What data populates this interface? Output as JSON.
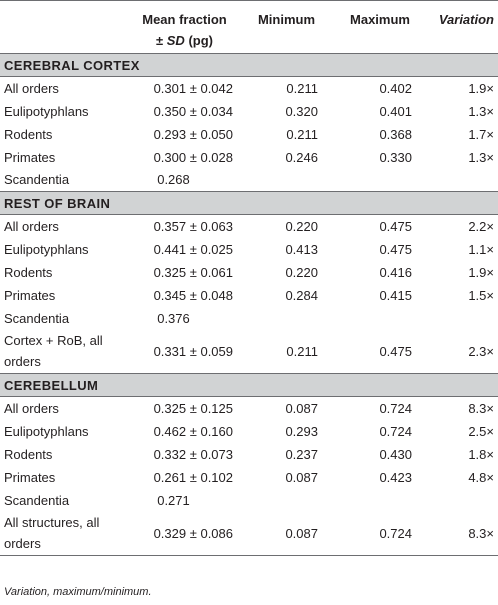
{
  "header": {
    "mean_line1": "Mean fraction",
    "mean_pm": "± ",
    "mean_sd": "SD",
    "mean_unit": " (pg)",
    "minimum": "Minimum",
    "maximum": "Maximum",
    "variation": "Variation"
  },
  "sections": [
    {
      "title": "CEREBRAL CORTEX",
      "rows": [
        {
          "name": "All orders",
          "mean": "0.301 ± 0.042",
          "min": "0.211",
          "max": "0.402",
          "var": "1.9×"
        },
        {
          "name": "Eulipotyphlans",
          "mean": "0.350 ± 0.034",
          "min": "0.320",
          "max": "0.401",
          "var": "1.3×"
        },
        {
          "name": "Rodents",
          "mean": "0.293 ± 0.050",
          "min": "0.211",
          "max": "0.368",
          "var": "1.7×"
        },
        {
          "name": "Primates",
          "mean": "0.300 ± 0.028",
          "min": "0.246",
          "max": "0.330",
          "var": "1.3×"
        },
        {
          "name": "Scandentia",
          "mean": "0.268",
          "min": "",
          "max": "",
          "var": ""
        }
      ]
    },
    {
      "title": "REST OF BRAIN",
      "rows": [
        {
          "name": "All orders",
          "mean": "0.357 ± 0.063",
          "min": "0.220",
          "max": "0.475",
          "var": "2.2×"
        },
        {
          "name": "Eulipotyphlans",
          "mean": "0.441 ± 0.025",
          "min": "0.413",
          "max": "0.475",
          "var": "1.1×"
        },
        {
          "name": "Rodents",
          "mean": "0.325 ± 0.061",
          "min": "0.220",
          "max": "0.416",
          "var": "1.9×"
        },
        {
          "name": "Primates",
          "mean": "0.345 ± 0.048",
          "min": "0.284",
          "max": "0.415",
          "var": "1.5×"
        },
        {
          "name": "Scandentia",
          "mean": "0.376",
          "min": "",
          "max": "",
          "var": ""
        },
        {
          "name": "Cortex + RoB, all orders",
          "mean": "0.331 ± 0.059",
          "min": "0.211",
          "max": "0.475",
          "var": "2.3×"
        }
      ]
    },
    {
      "title": "CEREBELLUM",
      "rows": [
        {
          "name": "All orders",
          "mean": "0.325 ± 0.125",
          "min": "0.087",
          "max": "0.724",
          "var": "8.3×"
        },
        {
          "name": "Eulipotyphlans",
          "mean": "0.462 ± 0.160",
          "min": "0.293",
          "max": "0.724",
          "var": "2.5×"
        },
        {
          "name": "Rodents",
          "mean": "0.332 ± 0.073",
          "min": "0.237",
          "max": "0.430",
          "var": "1.8×"
        },
        {
          "name": "Primates",
          "mean": "0.261 ± 0.102",
          "min": "0.087",
          "max": "0.423",
          "var": "4.8×"
        },
        {
          "name": "Scandentia",
          "mean": "0.271",
          "min": "",
          "max": "",
          "var": ""
        },
        {
          "name": "All structures, all orders",
          "mean": "0.329 ± 0.086",
          "min": "0.087",
          "max": "0.724",
          "var": "8.3×"
        }
      ]
    }
  ],
  "footnote": "Variation, maximum/minimum."
}
